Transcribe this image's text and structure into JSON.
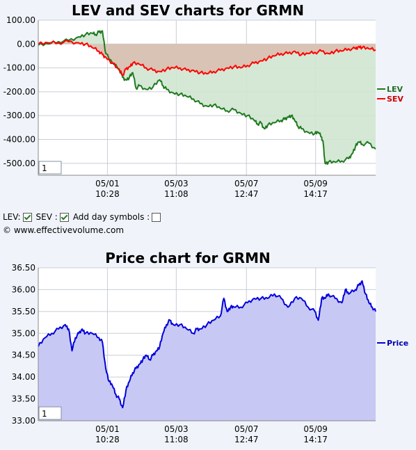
{
  "controls": {
    "lev_label": "LEV:",
    "sev_label": "SEV :",
    "day_symbols_label": "Add day symbols :",
    "lev_checked": true,
    "sev_checked": true,
    "day_symbols_checked": false
  },
  "copyright": "© www.effectivevolume.com",
  "chart_data": [
    {
      "type": "area",
      "title": "LEV and SEV charts for GRMN",
      "ylim": [
        -550,
        100
      ],
      "yticks": [
        100,
        0,
        -100,
        -200,
        -300,
        -400,
        -500
      ],
      "ytick_labels": [
        "100.00",
        "0.00",
        "-100.00",
        "-200.00",
        "-300.00",
        "-400.00",
        "-500.00"
      ],
      "xlim": [
        0,
        100
      ],
      "xticks": [
        {
          "x": 20.5,
          "date": "05/01",
          "time": "10:28"
        },
        {
          "x": 40.9,
          "date": "05/03",
          "time": "11:08"
        },
        {
          "x": 61.7,
          "date": "05/07",
          "time": "12:47"
        },
        {
          "x": 82.2,
          "date": "05/09",
          "time": "14:17"
        }
      ],
      "zoom_value": "1",
      "grid": true,
      "legend_position": "right",
      "series": [
        {
          "name": "LEV",
          "color": "#1f7a1f",
          "fill": "#cfe6d0",
          "x": [
            0,
            3,
            6,
            9,
            12,
            14,
            16,
            17,
            18,
            19,
            20,
            22,
            24,
            25,
            26,
            27,
            28,
            29,
            30,
            32,
            34,
            36,
            37,
            38,
            40,
            42,
            44,
            46,
            48,
            50,
            52,
            54,
            56,
            58,
            60,
            62,
            64,
            65,
            66,
            67,
            68,
            70,
            72,
            73,
            74,
            75,
            76,
            77,
            78,
            80,
            82,
            83,
            84,
            84.5,
            85,
            86,
            88,
            90,
            92,
            93,
            94,
            95,
            96,
            98,
            100
          ],
          "values": [
            -5,
            0,
            10,
            15,
            30,
            40,
            45,
            40,
            50,
            55,
            -40,
            -80,
            -105,
            -140,
            -150,
            -140,
            -120,
            -185,
            -175,
            -190,
            -180,
            -150,
            -175,
            -190,
            -205,
            -210,
            -220,
            -230,
            -250,
            -260,
            -255,
            -270,
            -280,
            -275,
            -290,
            -300,
            -320,
            -335,
            -330,
            -355,
            -340,
            -330,
            -320,
            -315,
            -305,
            -300,
            -320,
            -345,
            -355,
            -370,
            -375,
            -370,
            -390,
            -420,
            -500,
            -495,
            -495,
            -490,
            -480,
            -460,
            -430,
            -410,
            -420,
            -415,
            -440
          ]
        },
        {
          "name": "SEV",
          "color": "#ff0000",
          "fill": "#d8bfb0",
          "x": [
            0,
            3,
            6,
            9,
            12,
            14,
            16,
            18,
            19,
            20,
            22,
            24,
            25,
            26,
            27,
            28,
            30,
            32,
            34,
            36,
            38,
            40,
            42,
            44,
            46,
            48,
            50,
            52,
            54,
            56,
            58,
            60,
            62,
            64,
            66,
            68,
            70,
            72,
            74,
            76,
            78,
            80,
            82,
            84,
            86,
            88,
            90,
            92,
            94,
            95,
            96,
            98,
            100
          ],
          "values": [
            0,
            5,
            5,
            10,
            5,
            0,
            -15,
            -30,
            -45,
            -55,
            -80,
            -110,
            -130,
            -105,
            -95,
            -80,
            -85,
            -100,
            -110,
            -115,
            -105,
            -100,
            -100,
            -110,
            -110,
            -120,
            -125,
            -115,
            -110,
            -100,
            -95,
            -100,
            -90,
            -80,
            -70,
            -60,
            -50,
            -40,
            -40,
            -30,
            -45,
            -40,
            -35,
            -30,
            -40,
            -30,
            -30,
            -20,
            -20,
            -10,
            -15,
            -20,
            -25
          ]
        }
      ]
    },
    {
      "type": "area",
      "title": "Price chart for GRMN",
      "ylim": [
        33,
        36.5
      ],
      "yticks": [
        36.5,
        36.0,
        35.5,
        35.0,
        34.5,
        34.0,
        33.5,
        33.0
      ],
      "ytick_labels": [
        "36.50",
        "36.00",
        "35.50",
        "35.00",
        "34.50",
        "34.00",
        "33.50",
        "33.00"
      ],
      "xlim": [
        0,
        100
      ],
      "xticks": [
        {
          "x": 20.5,
          "date": "05/01",
          "time": "10:28"
        },
        {
          "x": 40.9,
          "date": "05/03",
          "time": "11:08"
        },
        {
          "x": 61.7,
          "date": "05/07",
          "time": "12:47"
        },
        {
          "x": 82.2,
          "date": "05/09",
          "time": "14:17"
        }
      ],
      "zoom_value": "1",
      "grid": true,
      "legend_position": "right",
      "series": [
        {
          "name": "Price",
          "color": "#0000dd",
          "fill": "#c8c8f4",
          "x": [
            0,
            2,
            4,
            6,
            8,
            9,
            10,
            11,
            12,
            13,
            14,
            16,
            18,
            19,
            20,
            21,
            22,
            23,
            24,
            25,
            26,
            27,
            28,
            29,
            30,
            31,
            32,
            33,
            34,
            35,
            36,
            37,
            38,
            39,
            40,
            42,
            44,
            46,
            47,
            48,
            50,
            52,
            54,
            55,
            56,
            57,
            58,
            60,
            62,
            64,
            66,
            68,
            70,
            72,
            74,
            76,
            78,
            80,
            82,
            83,
            84,
            85,
            86,
            88,
            90,
            91,
            92,
            94,
            95,
            96,
            97,
            98,
            99,
            100
          ],
          "values": [
            34.7,
            34.9,
            35.0,
            35.1,
            35.2,
            35.1,
            34.6,
            34.9,
            35.0,
            35.1,
            35.0,
            35.0,
            34.9,
            34.8,
            34.2,
            33.9,
            33.8,
            33.6,
            33.5,
            33.3,
            33.7,
            33.9,
            34.1,
            34.2,
            34.3,
            34.4,
            34.5,
            34.4,
            34.5,
            34.6,
            34.7,
            35.0,
            35.2,
            35.3,
            35.2,
            35.2,
            35.1,
            35.0,
            35.1,
            35.1,
            35.2,
            35.3,
            35.4,
            35.8,
            35.5,
            35.6,
            35.6,
            35.6,
            35.7,
            35.8,
            35.8,
            35.8,
            35.9,
            35.8,
            35.6,
            35.8,
            35.8,
            35.6,
            35.5,
            35.3,
            35.8,
            35.8,
            35.9,
            35.8,
            35.7,
            36.0,
            35.9,
            36.0,
            36.1,
            36.2,
            35.9,
            35.7,
            35.6,
            35.5
          ]
        }
      ]
    }
  ]
}
